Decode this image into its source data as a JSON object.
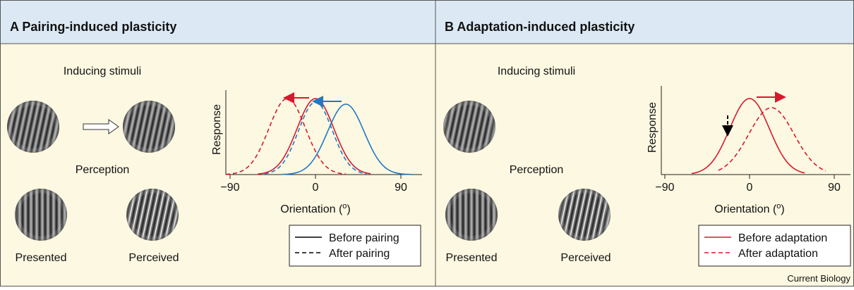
{
  "panel_a": {
    "title": "A Pairing-induced plasticity",
    "inducing": "Inducing stimuli",
    "perception": "Perception",
    "presented": "Presented",
    "perceived": "Perceived",
    "y_label": "Response",
    "x_label": [
      "Orientation (",
      "o",
      ")"
    ],
    "xticks": [
      "−90",
      "0",
      "90"
    ],
    "legend": [
      "Before pairing",
      "After pairing"
    ]
  },
  "panel_b": {
    "title": "B Adaptation-induced plasticity",
    "inducing": "Inducing stimuli",
    "perception": "Perception",
    "presented": "Presented",
    "perceived": "Perceived",
    "y_label": "Response",
    "x_label": [
      "Orientation (",
      "o",
      ")"
    ],
    "xticks": [
      "−90",
      "0",
      "90"
    ],
    "legend": [
      "Before adaptation",
      "After adaptation"
    ]
  },
  "footer": "Current Biology"
}
